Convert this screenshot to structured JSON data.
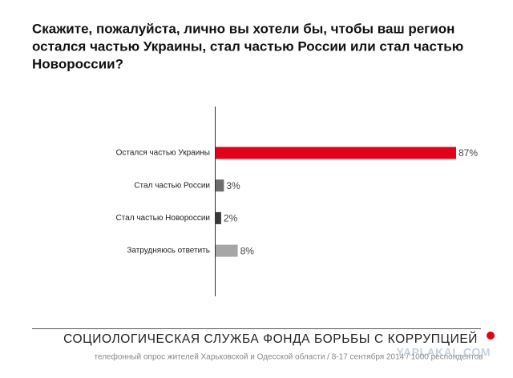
{
  "chart_data": {
    "type": "bar",
    "orientation": "horizontal",
    "title": [
      "Скажите, пожалуйста, лично вы хотели бы, чтобы ваш регион",
      "остался частью Украины, стал частью России или стал частью",
      "Новороссии?"
    ],
    "categories": [
      "Остался частью Украины",
      "Стал частью России",
      "Стал частью Новороссии",
      "Затрудняюсь ответить"
    ],
    "values": [
      87,
      3,
      2,
      8
    ],
    "value_labels": [
      "87%",
      "3%",
      "2%",
      "8%"
    ],
    "colors": [
      "#e2001a",
      "#6d6d6d",
      "#3a3a3a",
      "#a6a6a6"
    ],
    "footer_title": "СОЦИОЛОГИЧЕСКАЯ СЛУЖБА ФОНДА БОРЬБЫ С КОРРУПЦИЕЙ",
    "footer_subtitle": "телефонный опрос жителей Харьковской и Одесской области / 8-17 сентября 2014 / 1000 респондентов",
    "watermark": "YAPLAKAL.COM"
  }
}
